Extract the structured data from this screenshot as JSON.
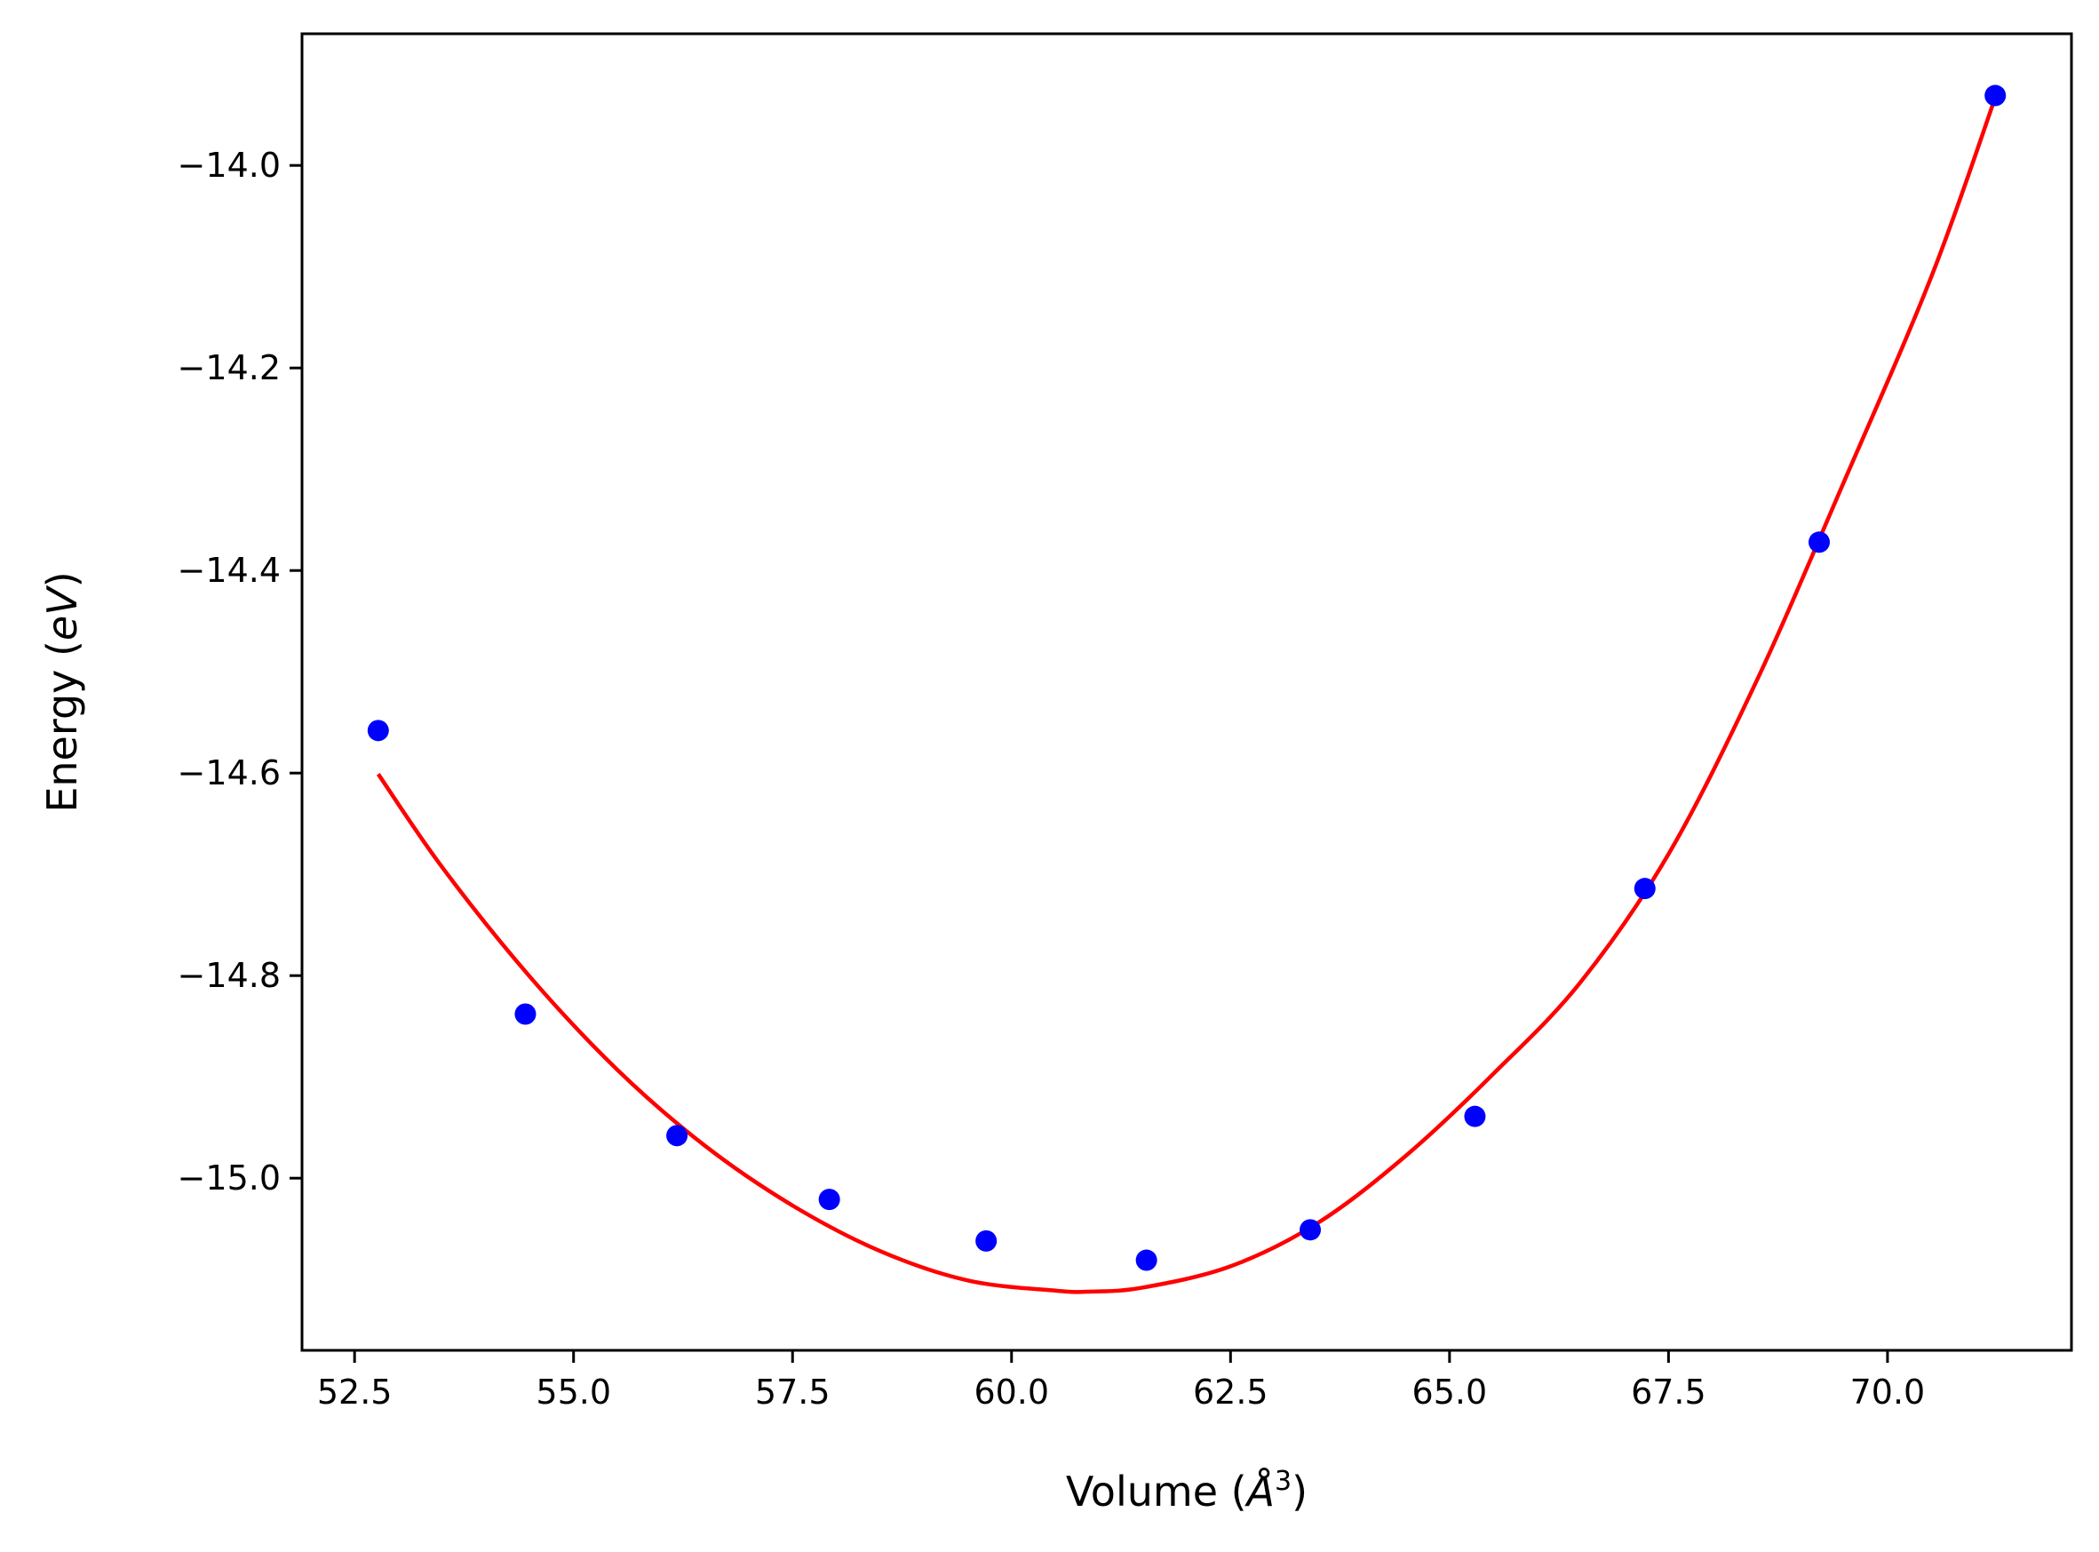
{
  "chart_data": {
    "type": "scatter",
    "xlabel": "Volume",
    "xlabel_unit_base": "Å",
    "xlabel_unit_exp": "3",
    "ylabel": "Energy",
    "ylabel_unit": "eV",
    "xlim": [
      51.9,
      72.1
    ],
    "ylim": [
      -15.17,
      -13.87
    ],
    "xticks": [
      52.5,
      55.0,
      57.5,
      60.0,
      62.5,
      65.0,
      67.5,
      70.0
    ],
    "xtick_labels": [
      "52.5",
      "55.0",
      "57.5",
      "60.0",
      "62.5",
      "65.0",
      "67.5",
      "70.0"
    ],
    "yticks": [
      -14.0,
      -14.2,
      -14.4,
      -14.6,
      -14.8,
      -15.0
    ],
    "ytick_labels": [
      "−14.0",
      "−14.2",
      "−14.4",
      "−14.6",
      "−14.8",
      "−15.0"
    ],
    "grid": false,
    "series": [
      {
        "kind": "points",
        "color": "#0000ff",
        "x": [
          52.77,
          54.45,
          56.18,
          57.92,
          59.71,
          61.54,
          63.41,
          65.29,
          67.23,
          69.22,
          71.23
        ],
        "y": [
          -14.558,
          -14.838,
          -14.958,
          -15.021,
          -15.062,
          -15.081,
          -15.051,
          -14.939,
          -14.714,
          -14.372,
          -13.931
        ]
      },
      {
        "kind": "fit",
        "color": "#ff0000",
        "x": [
          52.77,
          53.5,
          54.5,
          55.5,
          56.5,
          57.5,
          58.5,
          59.5,
          60.5,
          60.9,
          61.5,
          62.5,
          63.5,
          64.5,
          65.5,
          66.5,
          67.5,
          68.5,
          69.5,
          70.5,
          71.23
        ],
        "y": [
          -14.601,
          -14.693,
          -14.801,
          -14.893,
          -14.968,
          -15.027,
          -15.072,
          -15.101,
          -15.111,
          -15.112,
          -15.108,
          -15.087,
          -15.044,
          -14.978,
          -14.897,
          -14.806,
          -14.68,
          -14.51,
          -14.313,
          -14.11,
          -13.933
        ]
      }
    ]
  }
}
